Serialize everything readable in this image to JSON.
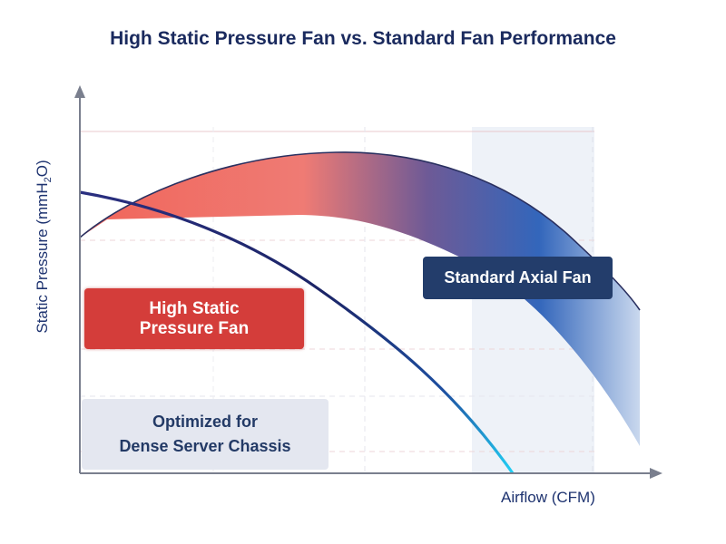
{
  "title": "High Static Pressure Fan vs. Standard Fan Performance",
  "y_axis": {
    "label": "Static Pressure (mmH",
    "subscript": "2",
    "suffix": "O)"
  },
  "x_axis": {
    "label": "Airflow (CFM)"
  },
  "labels": {
    "high_static_line1": "High Static",
    "high_static_line2": "Pressure Fan",
    "standard_axial": "Standard Axial Fan",
    "optimized_line1": "Optimized for",
    "optimized_line2": "Dense Server Chassis"
  },
  "colors": {
    "title": "#1a2a5e",
    "high_static_box": "#d43d3a",
    "standard_box": "#233d6b",
    "optimized_box": "#e4e7f0",
    "band_start": "#f0655a",
    "band_end": "#3366bb",
    "curve_start": "#1b2466",
    "curve_end": "#22d0f5"
  }
}
